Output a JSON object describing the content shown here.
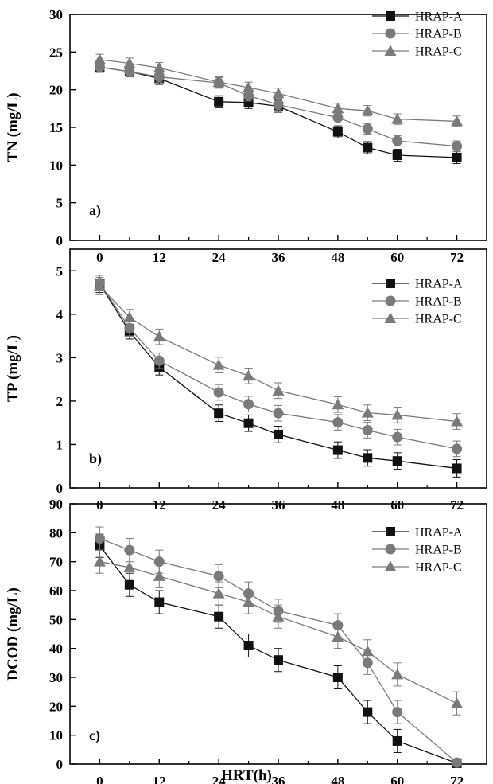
{
  "chart_data": [
    {
      "type": "line",
      "panel_label": "a)",
      "ylabel": "TN (mg/L)",
      "xlabel": "",
      "ylim": [
        0,
        30
      ],
      "yticks": [
        0,
        5,
        10,
        15,
        20,
        25,
        30
      ],
      "xlim": [
        -6,
        78
      ],
      "xticks": [
        0,
        12,
        24,
        36,
        48,
        60,
        72
      ],
      "legend_position": "top-right",
      "x": [
        0,
        6,
        12,
        24,
        30,
        36,
        48,
        54,
        60,
        72
      ],
      "series": [
        {
          "name": "HRAP-A",
          "marker": "square",
          "color": "#111111",
          "values": [
            23.0,
            22.4,
            21.5,
            18.4,
            18.3,
            17.8,
            14.4,
            12.3,
            11.3,
            11.0
          ],
          "errors": [
            0.7,
            0.7,
            0.8,
            0.8,
            0.8,
            0.8,
            0.8,
            0.8,
            0.8,
            0.8
          ]
        },
        {
          "name": "HRAP-B",
          "marker": "circle",
          "color": "#7a7a7a",
          "values": [
            23.0,
            22.4,
            21.7,
            20.9,
            19.2,
            18.0,
            16.3,
            14.8,
            13.2,
            12.5
          ],
          "errors": [
            0.7,
            0.7,
            0.7,
            0.7,
            0.7,
            0.7,
            0.7,
            0.7,
            0.7,
            0.7
          ]
        },
        {
          "name": "HRAP-C",
          "marker": "triangle",
          "color": "#7a7a7a",
          "values": [
            24.0,
            23.5,
            22.9,
            21.0,
            20.3,
            19.5,
            17.5,
            17.2,
            16.1,
            15.8
          ],
          "errors": [
            0.7,
            0.7,
            0.7,
            0.7,
            0.7,
            0.7,
            0.7,
            0.7,
            0.7,
            0.7
          ]
        }
      ]
    },
    {
      "type": "line",
      "panel_label": "b)",
      "ylabel": "TP (mg/L)",
      "xlabel": "",
      "ylim": [
        0,
        5.5
      ],
      "yticks": [
        0,
        1,
        2,
        3,
        4,
        5
      ],
      "xlim": [
        -6,
        78
      ],
      "xticks": [
        0,
        12,
        24,
        36,
        48,
        60,
        72
      ],
      "legend_position": "top-right",
      "x": [
        0,
        6,
        12,
        24,
        30,
        36,
        48,
        54,
        60,
        72
      ],
      "series": [
        {
          "name": "HRAP-A",
          "marker": "square",
          "color": "#111111",
          "values": [
            4.7,
            3.6,
            2.78,
            1.72,
            1.49,
            1.23,
            0.87,
            0.69,
            0.62,
            0.45
          ],
          "errors": [
            0.2,
            0.17,
            0.18,
            0.19,
            0.19,
            0.19,
            0.19,
            0.19,
            0.19,
            0.2
          ]
        },
        {
          "name": "HRAP-B",
          "marker": "circle",
          "color": "#7a7a7a",
          "values": [
            4.72,
            3.68,
            2.93,
            2.2,
            1.93,
            1.72,
            1.51,
            1.33,
            1.17,
            0.9
          ],
          "errors": [
            0.18,
            0.18,
            0.18,
            0.18,
            0.18,
            0.18,
            0.18,
            0.18,
            0.18,
            0.18
          ]
        },
        {
          "name": "HRAP-C",
          "marker": "triangle",
          "color": "#7a7a7a",
          "values": [
            4.65,
            3.93,
            3.48,
            2.83,
            2.58,
            2.24,
            1.92,
            1.73,
            1.68,
            1.53
          ],
          "errors": [
            0.2,
            0.18,
            0.18,
            0.18,
            0.18,
            0.18,
            0.18,
            0.18,
            0.18,
            0.18
          ]
        }
      ]
    },
    {
      "type": "line",
      "panel_label": "c)",
      "ylabel": "DCOD (mg/L)",
      "xlabel": "HRT(h)",
      "ylim": [
        0,
        90
      ],
      "yticks": [
        0,
        10,
        20,
        30,
        40,
        50,
        60,
        70,
        80,
        90
      ],
      "xlim": [
        -6,
        78
      ],
      "xticks": [
        0,
        12,
        24,
        36,
        48,
        60,
        72
      ],
      "legend_position": "top-right",
      "x": [
        0,
        6,
        12,
        24,
        30,
        36,
        48,
        54,
        60,
        72
      ],
      "series": [
        {
          "name": "HRAP-A",
          "marker": "square",
          "color": "#111111",
          "values": [
            75.5,
            62,
            56,
            51,
            41,
            36,
            30,
            18,
            8,
            0.3
          ],
          "errors": [
            4,
            4,
            4,
            4,
            4,
            4,
            4,
            4,
            4,
            1
          ]
        },
        {
          "name": "HRAP-B",
          "marker": "circle",
          "color": "#7a7a7a",
          "values": [
            78,
            74,
            70,
            65,
            59,
            53,
            48,
            35,
            18,
            0.5
          ],
          "errors": [
            4,
            4,
            4,
            4,
            4,
            4,
            4,
            4,
            4,
            1
          ]
        },
        {
          "name": "HRAP-C",
          "marker": "triangle",
          "color": "#7a7a7a",
          "values": [
            70,
            68,
            65,
            59,
            56,
            51,
            44,
            39,
            31,
            21
          ],
          "errors": [
            4,
            4,
            4,
            4,
            4,
            4,
            4,
            4,
            4,
            4
          ]
        }
      ]
    }
  ]
}
